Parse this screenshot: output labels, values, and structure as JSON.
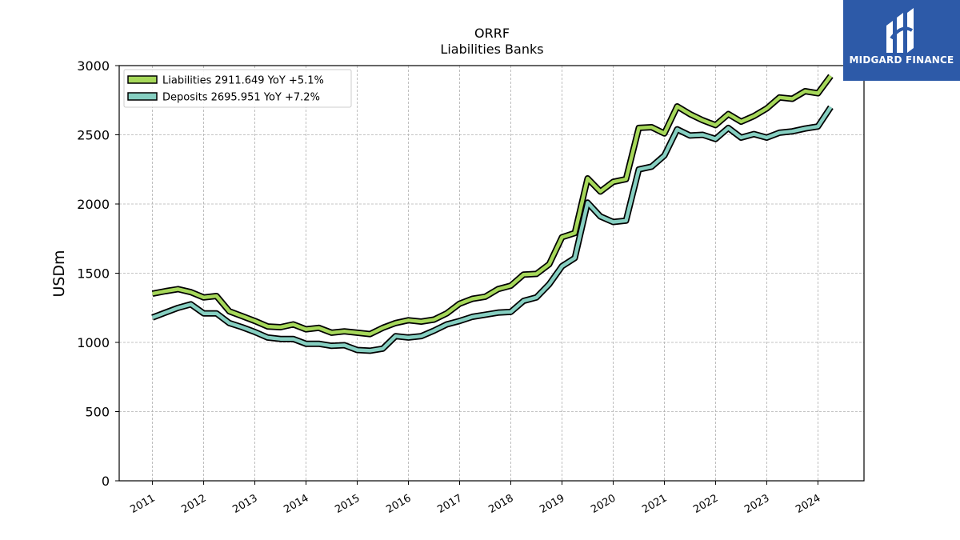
{
  "logo": {
    "text": "MIDGARD FINANCE",
    "color": "#2d5aa8"
  },
  "chart_data": {
    "type": "line",
    "title": "ORRF",
    "subtitle": "Liabilities Banks",
    "xlabel": "",
    "ylabel": "USDm",
    "ylim": [
      0,
      3000
    ],
    "yticks": [
      0,
      500,
      1000,
      1500,
      2000,
      2500,
      3000
    ],
    "xticks": [
      "2011",
      "2012",
      "2013",
      "2014",
      "2015",
      "2016",
      "2017",
      "2018",
      "2019",
      "2020",
      "2021",
      "2022",
      "2023",
      "2024"
    ],
    "grid": true,
    "legend_position": "top-left",
    "x": [
      "2011-01",
      "2011-04",
      "2011-07",
      "2011-10",
      "2012-01",
      "2012-04",
      "2012-07",
      "2012-10",
      "2013-01",
      "2013-04",
      "2013-07",
      "2013-10",
      "2014-01",
      "2014-04",
      "2014-07",
      "2014-10",
      "2015-01",
      "2015-04",
      "2015-07",
      "2015-10",
      "2016-01",
      "2016-04",
      "2016-07",
      "2016-10",
      "2017-01",
      "2017-04",
      "2017-07",
      "2017-10",
      "2018-01",
      "2018-04",
      "2018-07",
      "2018-10",
      "2019-01",
      "2019-04",
      "2019-07",
      "2019-10",
      "2020-01",
      "2020-04",
      "2020-07",
      "2020-10",
      "2021-01",
      "2021-04",
      "2021-07",
      "2021-10",
      "2022-01",
      "2022-04",
      "2022-07",
      "2022-10",
      "2023-01",
      "2023-04",
      "2023-07",
      "2023-10",
      "2024-01",
      "2024-04"
    ],
    "series": [
      {
        "name": "Liabilities",
        "legend": "Liabilities  2911.649 YoY +5.1%",
        "color": "#a6d85a",
        "values": [
          1352,
          1370,
          1385,
          1363,
          1325,
          1335,
          1225,
          1190,
          1155,
          1115,
          1110,
          1130,
          1095,
          1105,
          1070,
          1080,
          1070,
          1060,
          1105,
          1140,
          1160,
          1150,
          1165,
          1210,
          1280,
          1315,
          1330,
          1385,
          1410,
          1490,
          1495,
          1565,
          1760,
          1790,
          2185,
          2090,
          2160,
          2180,
          2550,
          2555,
          2510,
          2705,
          2650,
          2605,
          2570,
          2650,
          2595,
          2635,
          2690,
          2770,
          2760,
          2815,
          2800,
          2925
        ]
      },
      {
        "name": "Deposits",
        "legend": "Deposits  2695.951 YoY +7.2%",
        "color": "#86cfc1",
        "values": [
          1180,
          1215,
          1250,
          1275,
          1210,
          1210,
          1140,
          1110,
          1075,
          1035,
          1025,
          1025,
          990,
          990,
          975,
          980,
          945,
          940,
          955,
          1045,
          1035,
          1045,
          1085,
          1130,
          1155,
          1185,
          1200,
          1215,
          1220,
          1300,
          1325,
          1420,
          1550,
          1610,
          2010,
          1910,
          1870,
          1880,
          2250,
          2270,
          2350,
          2540,
          2495,
          2500,
          2470,
          2550,
          2480,
          2505,
          2480,
          2515,
          2525,
          2545,
          2560,
          2700
        ]
      }
    ]
  }
}
